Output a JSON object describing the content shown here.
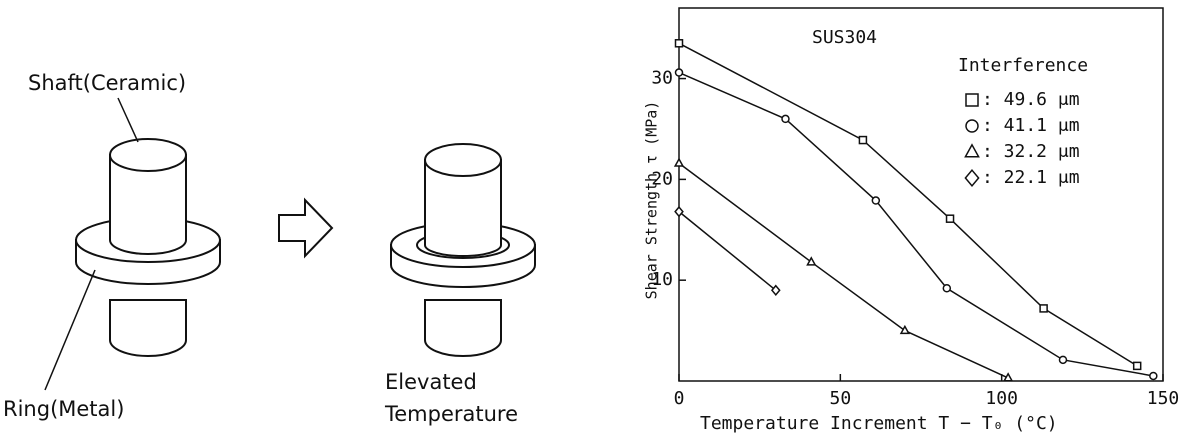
{
  "diagram": {
    "shaft_label": "Shaft(Ceramic)",
    "ring_label": "Ring(Metal)",
    "state_label": [
      "Elevated",
      "Temperature"
    ]
  },
  "chart_data": {
    "type": "line",
    "annotation": "SUS304",
    "legend_title": "Interference",
    "x_label": "Temperature Increment  T − T₀  (°C)",
    "y_label": "Shear Strength τ (MPa)",
    "xlim": [
      0,
      150
    ],
    "xticks": [
      0,
      50,
      100,
      150
    ],
    "ylim": [
      0,
      37
    ],
    "yticks": [
      10,
      20,
      30
    ],
    "series": [
      {
        "name": ": 49.6 μm",
        "marker": "square",
        "color": "#111111",
        "x": [
          0,
          57,
          84,
          113,
          142
        ],
        "values": [
          33.5,
          23.9,
          16.1,
          7.2,
          1.5
        ]
      },
      {
        "name": ": 41.1 μm",
        "marker": "circle",
        "color": "#111111",
        "x": [
          0,
          33,
          61,
          83,
          119,
          147
        ],
        "values": [
          30.6,
          26.0,
          17.9,
          9.2,
          2.1,
          0.5
        ]
      },
      {
        "name": ": 32.2 μm",
        "marker": "triangle",
        "color": "#111111",
        "x": [
          0,
          41,
          70,
          102
        ],
        "values": [
          21.6,
          11.8,
          5.0,
          0.3
        ]
      },
      {
        "name": ": 22.1 μm",
        "marker": "diamond",
        "color": "#111111",
        "x": [
          0,
          30
        ],
        "values": [
          16.8,
          9.0
        ]
      }
    ]
  }
}
